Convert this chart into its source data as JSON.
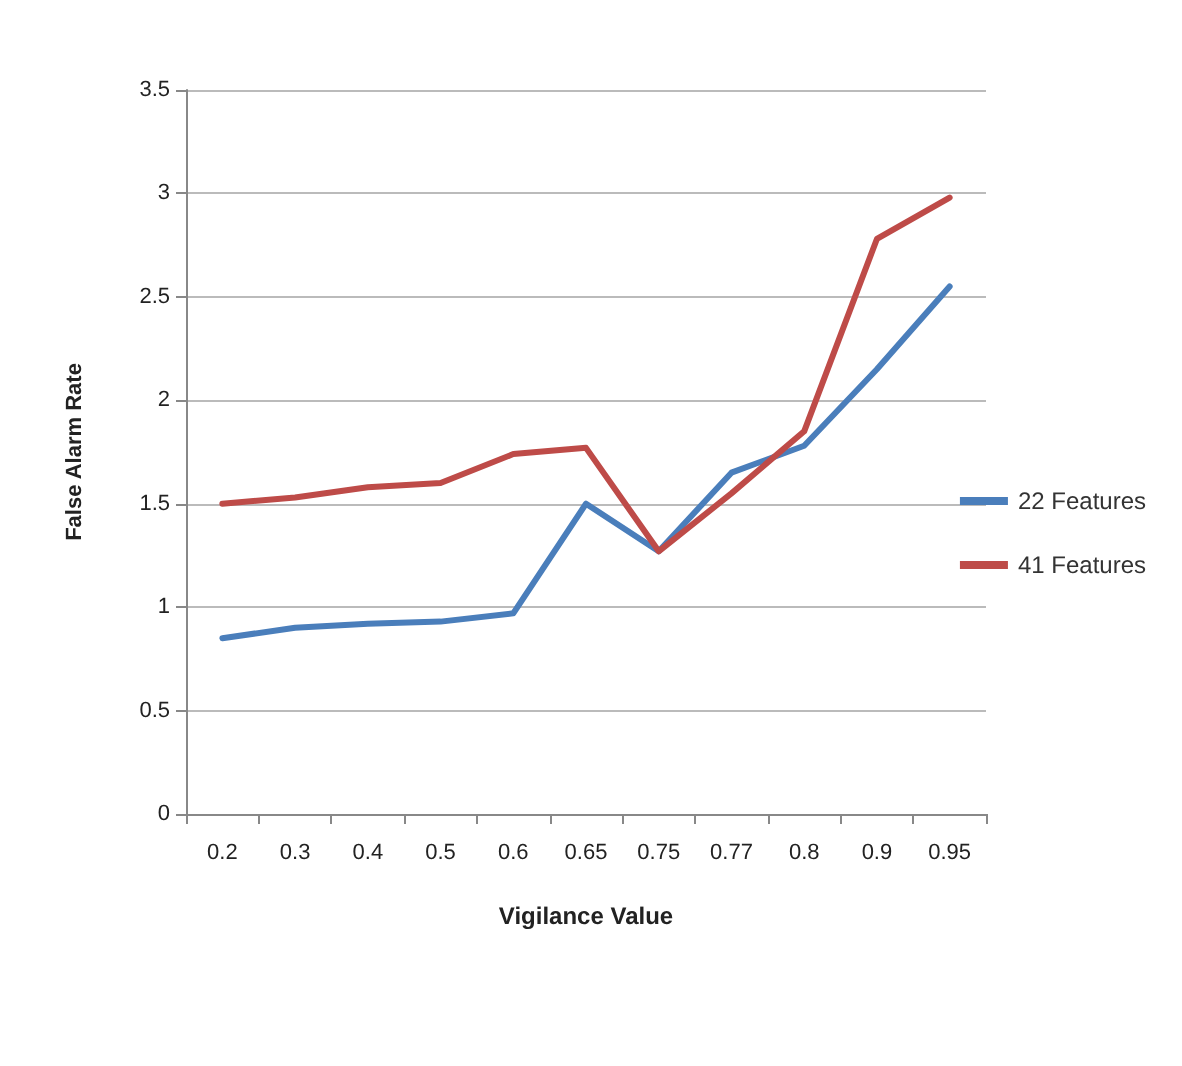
{
  "chart_data": {
    "type": "line",
    "xlabel": "Vigilance Value",
    "ylabel": "False Alarm Rate",
    "categories": [
      "0.2",
      "0.3",
      "0.4",
      "0.5",
      "0.6",
      "0.65",
      "0.75",
      "0.77",
      "0.8",
      "0.9",
      "0.95"
    ],
    "series": [
      {
        "name": "22 Features",
        "color": "#4a7ebb",
        "values": [
          0.85,
          0.9,
          0.92,
          0.93,
          0.97,
          1.5,
          1.27,
          1.65,
          1.78,
          2.15,
          2.55
        ]
      },
      {
        "name": "41 Features",
        "color": "#be4b48",
        "values": [
          1.5,
          1.53,
          1.58,
          1.6,
          1.74,
          1.77,
          1.27,
          1.55,
          1.85,
          2.78,
          2.98
        ]
      }
    ],
    "ylim": [
      0,
      3.5
    ],
    "yticks": [
      0,
      0.5,
      1,
      1.5,
      2,
      2.5,
      3,
      3.5
    ],
    "grid": "y",
    "legend": "right",
    "marker": "none",
    "line_style": "solid"
  }
}
